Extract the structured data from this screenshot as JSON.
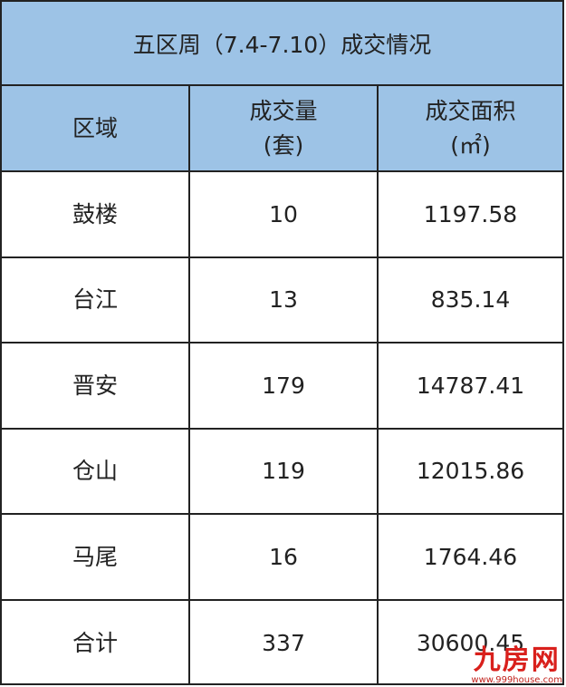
{
  "chart_data": {
    "type": "table",
    "title": "五区周（7.4-7.10）成交情况",
    "columns": [
      "区域",
      "成交量\n(套)",
      "成交面积\n(㎡)"
    ],
    "column_lines": [
      [
        "区域"
      ],
      [
        "成交量",
        "(套)"
      ],
      [
        "成交面积",
        "(㎡)"
      ]
    ],
    "rows": [
      [
        "鼓楼",
        "10",
        "1197.58"
      ],
      [
        "台江",
        "13",
        "835.14"
      ],
      [
        "晋安",
        "179",
        "14787.41"
      ],
      [
        "仓山",
        "119",
        "12015.86"
      ],
      [
        "马尾",
        "16",
        "1764.46"
      ],
      [
        "合计",
        "337",
        "30600.45"
      ]
    ],
    "header_color": "#9dc3e6"
  },
  "watermark": {
    "logo": "九房网",
    "url": "www.999house.com"
  }
}
